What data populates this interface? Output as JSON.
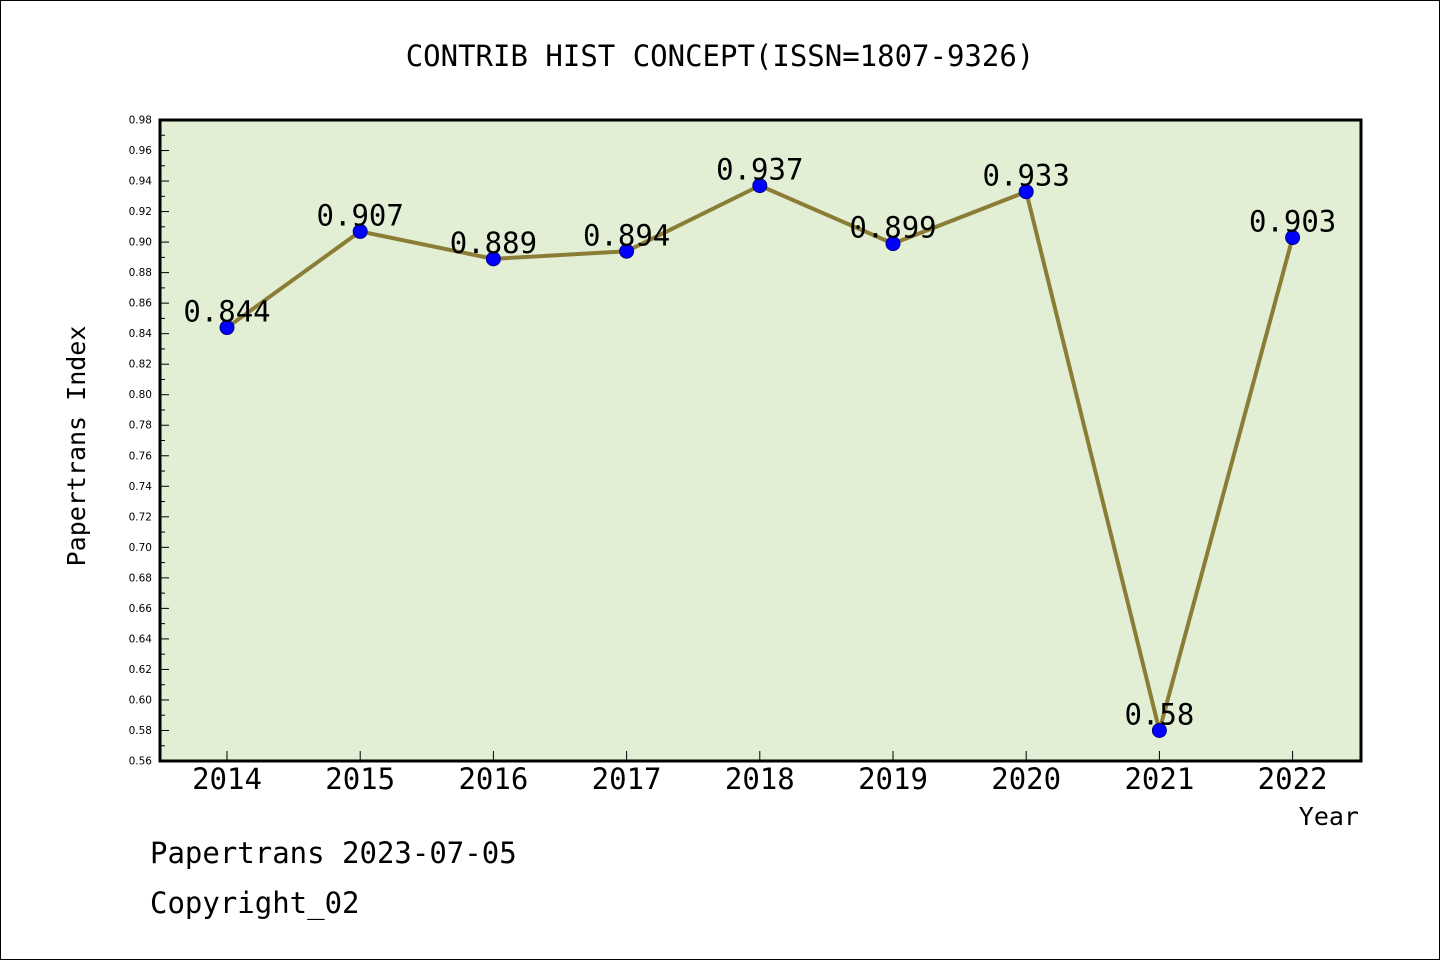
{
  "chart_data": {
    "type": "line",
    "title": "CONTRIB HIST CONCEPT(ISSN=1807-9326)",
    "xlabel": "Year",
    "ylabel": "Papertrans Index",
    "categories": [
      "2014",
      "2015",
      "2016",
      "2017",
      "2018",
      "2019",
      "2020",
      "2021",
      "2022"
    ],
    "values": [
      0.844,
      0.907,
      0.889,
      0.894,
      0.937,
      0.899,
      0.933,
      0.58,
      0.903
    ],
    "data_labels": [
      "0.844",
      "0.907",
      "0.889",
      "0.894",
      "0.937",
      "0.899",
      "0.933",
      "0.58",
      "0.903"
    ],
    "ylim": [
      0.56,
      0.98
    ],
    "y_ticks": [
      "0.56",
      "0.58",
      "0.60",
      "0.62",
      "0.64",
      "0.66",
      "0.68",
      "0.70",
      "0.72",
      "0.74",
      "0.76",
      "0.78",
      "0.80",
      "0.82",
      "0.84",
      "0.86",
      "0.88",
      "0.90",
      "0.92",
      "0.94",
      "0.96",
      "0.98"
    ],
    "grid": false,
    "colors": {
      "plot_background": "#e2efd5",
      "line": "#8b7d36",
      "marker": "#0000ff"
    }
  },
  "footer": {
    "date_line": "Papertrans 2023-07-05",
    "copyright": "Copyright_02"
  }
}
